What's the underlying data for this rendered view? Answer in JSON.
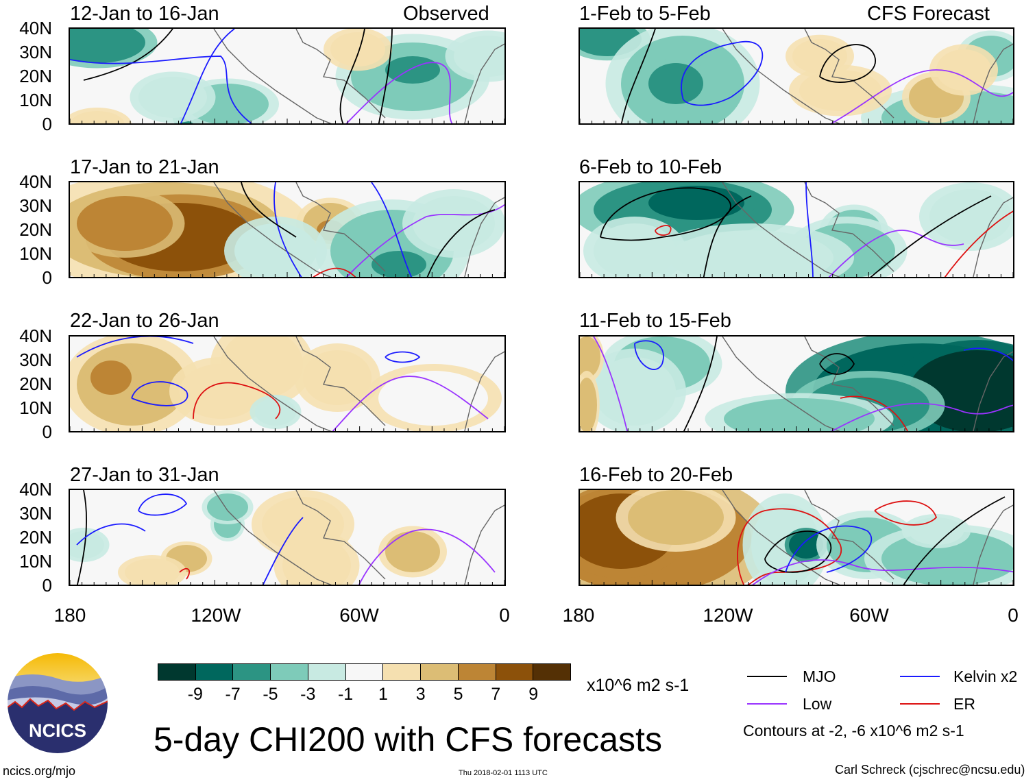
{
  "panels": [
    {
      "title": "12-Jan to 16-Jan",
      "tag": "Observed"
    },
    {
      "title": "1-Feb to 5-Feb",
      "tag": "CFS Forecast"
    },
    {
      "title": "17-Jan to 21-Jan",
      "tag": ""
    },
    {
      "title": "6-Feb to 10-Feb",
      "tag": ""
    },
    {
      "title": "22-Jan to 26-Jan",
      "tag": ""
    },
    {
      "title": "11-Feb to 15-Feb",
      "tag": ""
    },
    {
      "title": "27-Jan to 31-Jan",
      "tag": ""
    },
    {
      "title": "16-Feb to 20-Feb",
      "tag": ""
    }
  ],
  "lat_labels": [
    "40N",
    "30N",
    "20N",
    "10N",
    "0"
  ],
  "lon_labels": [
    "180",
    "120W",
    "60W",
    "0"
  ],
  "colorbar": {
    "labels": [
      "-9",
      "-7",
      "-5",
      "-3",
      "-1",
      "1",
      "3",
      "5",
      "7",
      "9"
    ],
    "colors": [
      "#00382f",
      "#00675d",
      "#2c9483",
      "#7ecbb9",
      "#c8eae2",
      "#f7f7f7",
      "#f5e0b0",
      "#dcbd75",
      "#bd8535",
      "#8c510a",
      "#543005"
    ],
    "units": "x10^6 m2 s-1"
  },
  "title": "5-day CHI200 with CFS forecasts",
  "legend": {
    "items": [
      {
        "label": "MJO",
        "color": "#000000"
      },
      {
        "label": "Kelvin x2",
        "color": "#1a1aff"
      },
      {
        "label": "Low",
        "color": "#9933ff"
      },
      {
        "label": "ER",
        "color": "#dd1111"
      }
    ],
    "contours_note": "Contours at -2, -6 x10^6 m2 s-1"
  },
  "logo": {
    "text": "NCICS"
  },
  "footer": {
    "left": "ncics.org/mjo",
    "center": "Thu 2018-02-01 1113 UTC",
    "right": "Carl Schreck (cjschrec@ncsu.edu)"
  }
}
